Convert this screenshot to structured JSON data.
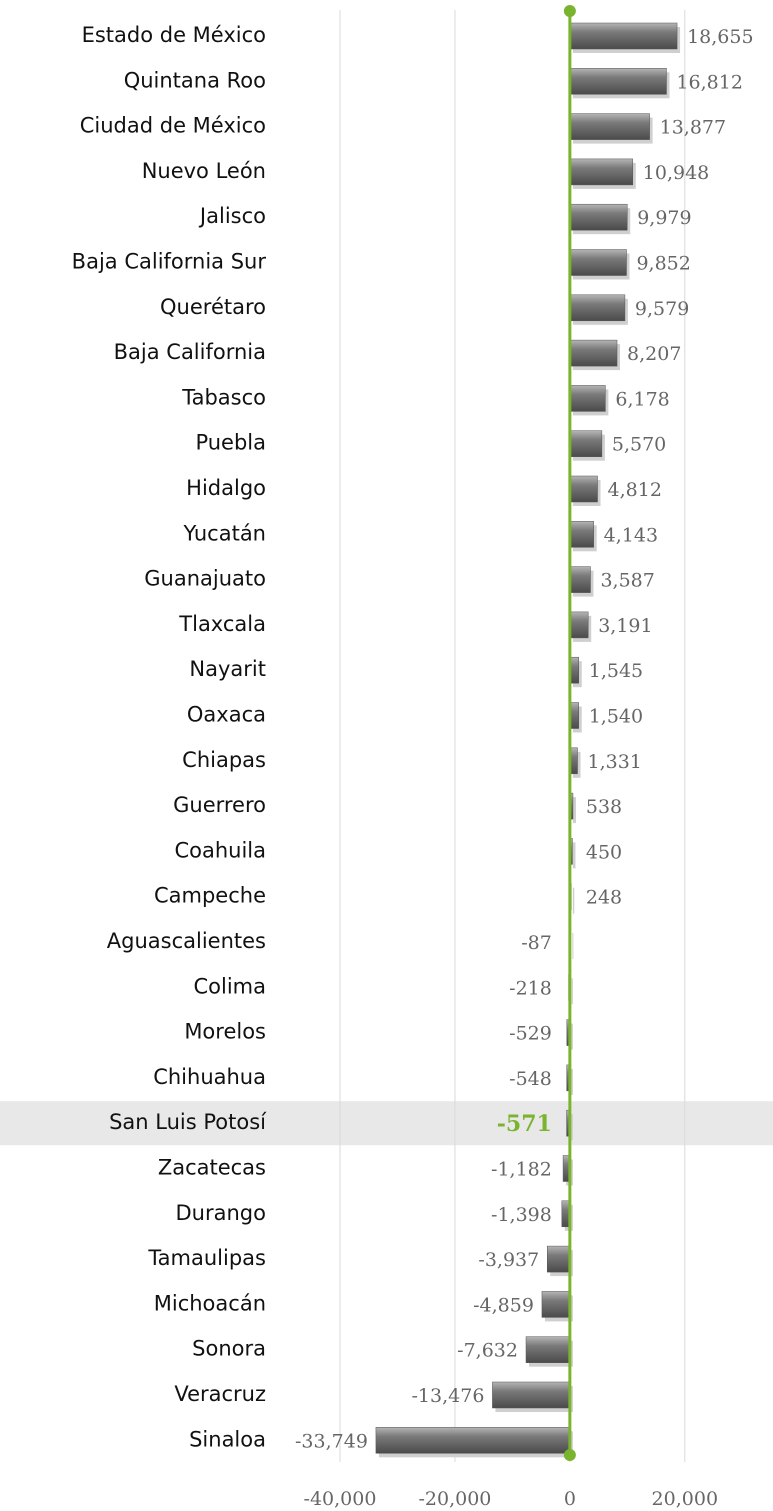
{
  "chart_data": {
    "type": "barh",
    "categories": [
      "Estado de México",
      "Quintana Roo",
      "Ciudad de México",
      "Nuevo León",
      "Jalisco",
      "Baja California Sur",
      "Querétaro",
      "Baja California",
      "Tabasco",
      "Puebla",
      "Hidalgo",
      "Yucatán",
      "Guanajuato",
      "Tlaxcala",
      "Nayarit",
      "Oaxaca",
      "Chiapas",
      "Guerrero",
      "Coahuila",
      "Campeche",
      "Aguascalientes",
      "Colima",
      "Morelos",
      "Chihuahua",
      "San Luis Potosí",
      "Zacatecas",
      "Durango",
      "Tamaulipas",
      "Michoacán",
      "Sonora",
      "Veracruz",
      "Sinaloa"
    ],
    "values": [
      18655,
      16812,
      13877,
      10948,
      9979,
      9852,
      9579,
      8207,
      6178,
      5570,
      4812,
      4143,
      3587,
      3191,
      1545,
      1540,
      1331,
      538,
      450,
      248,
      -87,
      -218,
      -529,
      -548,
      -571,
      -1182,
      -1398,
      -3937,
      -4859,
      -7632,
      -13476,
      -33749
    ],
    "value_labels": [
      "18,655",
      "16,812",
      "13,877",
      "10,948",
      "9,979",
      "9,852",
      "9,579",
      "8,207",
      "6,178",
      "5,570",
      "4,812",
      "4,143",
      "3,587",
      "3,191",
      "1,545",
      "1,540",
      "1,331",
      "538",
      "450",
      "248",
      "-87",
      "-218",
      "-529",
      "-548",
      "-571",
      "-1,182",
      "-1,398",
      "-3,937",
      "-4,859",
      "-7,632",
      "-13,476",
      "-33,749"
    ],
    "color": "#6e6e6e",
    "axis_color": "#7ab32e",
    "highlight_index": 24,
    "xlim": [
      -40000,
      35000
    ],
    "xticks": [
      {
        "value": -40000,
        "label": "-40,000"
      },
      {
        "value": -20000,
        "label": "-20,000"
      },
      0,
      {
        "value": 20000,
        "label": "20,000"
      }
    ],
    "grid": true
  }
}
